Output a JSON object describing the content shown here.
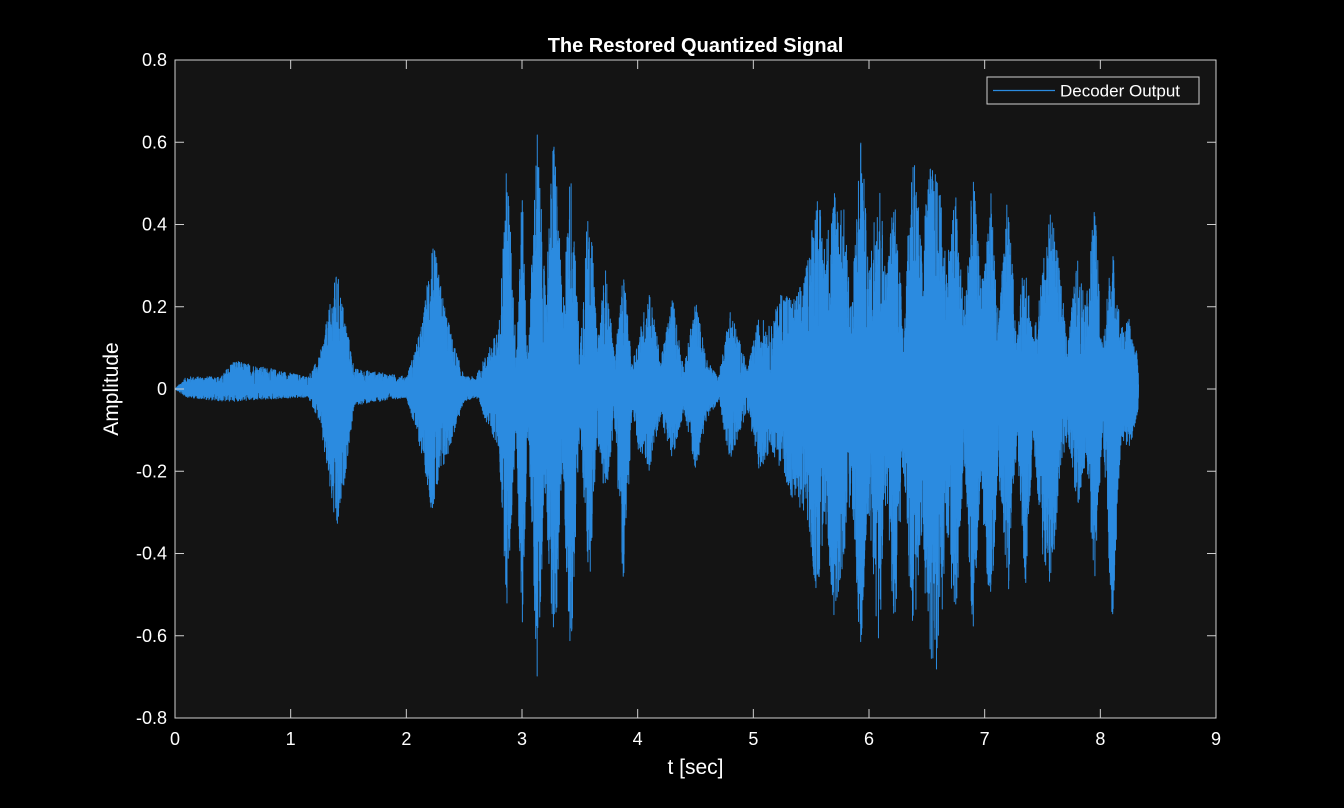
{
  "colors": {
    "figure_background": "#000000",
    "axes_background": "#141414",
    "axis_color": "#d0d0d0",
    "text_color": "#ffffff",
    "series_color": "#2b8be0",
    "legend_background": "#141414",
    "legend_border": "#d0d0d0"
  },
  "chart_data": {
    "type": "line",
    "title": "The Restored Quantized Signal",
    "xlabel": "t [sec]",
    "ylabel": "Amplitude",
    "xlim": [
      0,
      9
    ],
    "ylim": [
      -0.8,
      0.8
    ],
    "xticks": [
      0,
      1,
      2,
      3,
      4,
      5,
      6,
      7,
      8,
      9
    ],
    "xtick_labels": [
      "0",
      "1",
      "2",
      "3",
      "4",
      "5",
      "6",
      "7",
      "8",
      "9"
    ],
    "yticks": [
      0.8,
      0.6,
      0.4,
      0.2,
      0,
      -0.2,
      -0.4,
      -0.6,
      -0.8
    ],
    "ytick_labels": [
      "0.8",
      "0.6",
      "0.4",
      "0.2",
      "0",
      "-0.2",
      "-0.4",
      "-0.6",
      "-0.8"
    ],
    "grid": false,
    "legend": {
      "location": "top-right",
      "entries": [
        "Decoder Output"
      ]
    },
    "series": [
      {
        "name": "Decoder Output",
        "color": "#2b8be0",
        "envelope": {
          "t": [
            0,
            0.1,
            0.4,
            0.5,
            1.15,
            1.25,
            1.4,
            1.55,
            2.0,
            2.08,
            2.15,
            2.22,
            2.3,
            2.4,
            2.5,
            2.6,
            2.8,
            2.87,
            2.95,
            3.0,
            3.05,
            3.13,
            3.2,
            3.28,
            3.35,
            3.42,
            3.5,
            3.58,
            3.65,
            3.72,
            3.8,
            3.88,
            3.95,
            4.0,
            4.1,
            4.2,
            4.3,
            4.4,
            4.5,
            4.6,
            4.7,
            4.8,
            4.95,
            5.05,
            5.15,
            5.25,
            5.35,
            5.45,
            5.55,
            5.62,
            5.7,
            5.78,
            5.85,
            5.93,
            6.0,
            6.08,
            6.15,
            6.22,
            6.3,
            6.38,
            6.45,
            6.52,
            6.6,
            6.67,
            6.75,
            6.82,
            6.9,
            6.97,
            7.05,
            7.12,
            7.2,
            7.28,
            7.35,
            7.42,
            7.5,
            7.58,
            7.65,
            7.72,
            7.8,
            7.88,
            7.95,
            8.02,
            8.1,
            8.18,
            8.25,
            8.33
          ],
          "max": [
            0,
            0.03,
            0.03,
            0.07,
            0.03,
            0.08,
            0.29,
            0.05,
            0.03,
            0.1,
            0.18,
            0.38,
            0.25,
            0.12,
            0.03,
            0.03,
            0.15,
            0.57,
            0.1,
            0.5,
            0.07,
            0.65,
            0.25,
            0.66,
            0.2,
            0.55,
            0.1,
            0.5,
            0.12,
            0.3,
            0.08,
            0.29,
            0.06,
            0.12,
            0.25,
            0.07,
            0.23,
            0.05,
            0.22,
            0.07,
            0.03,
            0.2,
            0.05,
            0.18,
            0.15,
            0.25,
            0.22,
            0.28,
            0.5,
            0.35,
            0.5,
            0.45,
            0.2,
            0.66,
            0.28,
            0.56,
            0.28,
            0.5,
            0.15,
            0.64,
            0.35,
            0.55,
            0.52,
            0.32,
            0.48,
            0.2,
            0.53,
            0.25,
            0.5,
            0.17,
            0.48,
            0.12,
            0.36,
            0.12,
            0.3,
            0.45,
            0.28,
            0.12,
            0.32,
            0.22,
            0.46,
            0.1,
            0.36,
            0.15,
            0.17,
            0.07
          ],
          "min": [
            0,
            -0.02,
            -0.03,
            -0.03,
            -0.02,
            -0.08,
            -0.37,
            -0.04,
            -0.02,
            -0.1,
            -0.18,
            -0.3,
            -0.22,
            -0.12,
            -0.03,
            -0.02,
            -0.15,
            -0.54,
            -0.1,
            -0.65,
            -0.08,
            -0.72,
            -0.25,
            -0.68,
            -0.2,
            -0.69,
            -0.1,
            -0.5,
            -0.12,
            -0.28,
            -0.08,
            -0.52,
            -0.06,
            -0.15,
            -0.2,
            -0.07,
            -0.18,
            -0.05,
            -0.2,
            -0.07,
            -0.03,
            -0.18,
            -0.05,
            -0.2,
            -0.15,
            -0.2,
            -0.28,
            -0.3,
            -0.52,
            -0.32,
            -0.56,
            -0.42,
            -0.25,
            -0.69,
            -0.3,
            -0.66,
            -0.28,
            -0.6,
            -0.2,
            -0.66,
            -0.36,
            -0.64,
            -0.72,
            -0.35,
            -0.6,
            -0.18,
            -0.61,
            -0.25,
            -0.57,
            -0.2,
            -0.53,
            -0.13,
            -0.5,
            -0.12,
            -0.4,
            -0.5,
            -0.2,
            -0.12,
            -0.3,
            -0.18,
            -0.48,
            -0.1,
            -0.6,
            -0.12,
            -0.15,
            -0.05
          ]
        }
      }
    ]
  }
}
